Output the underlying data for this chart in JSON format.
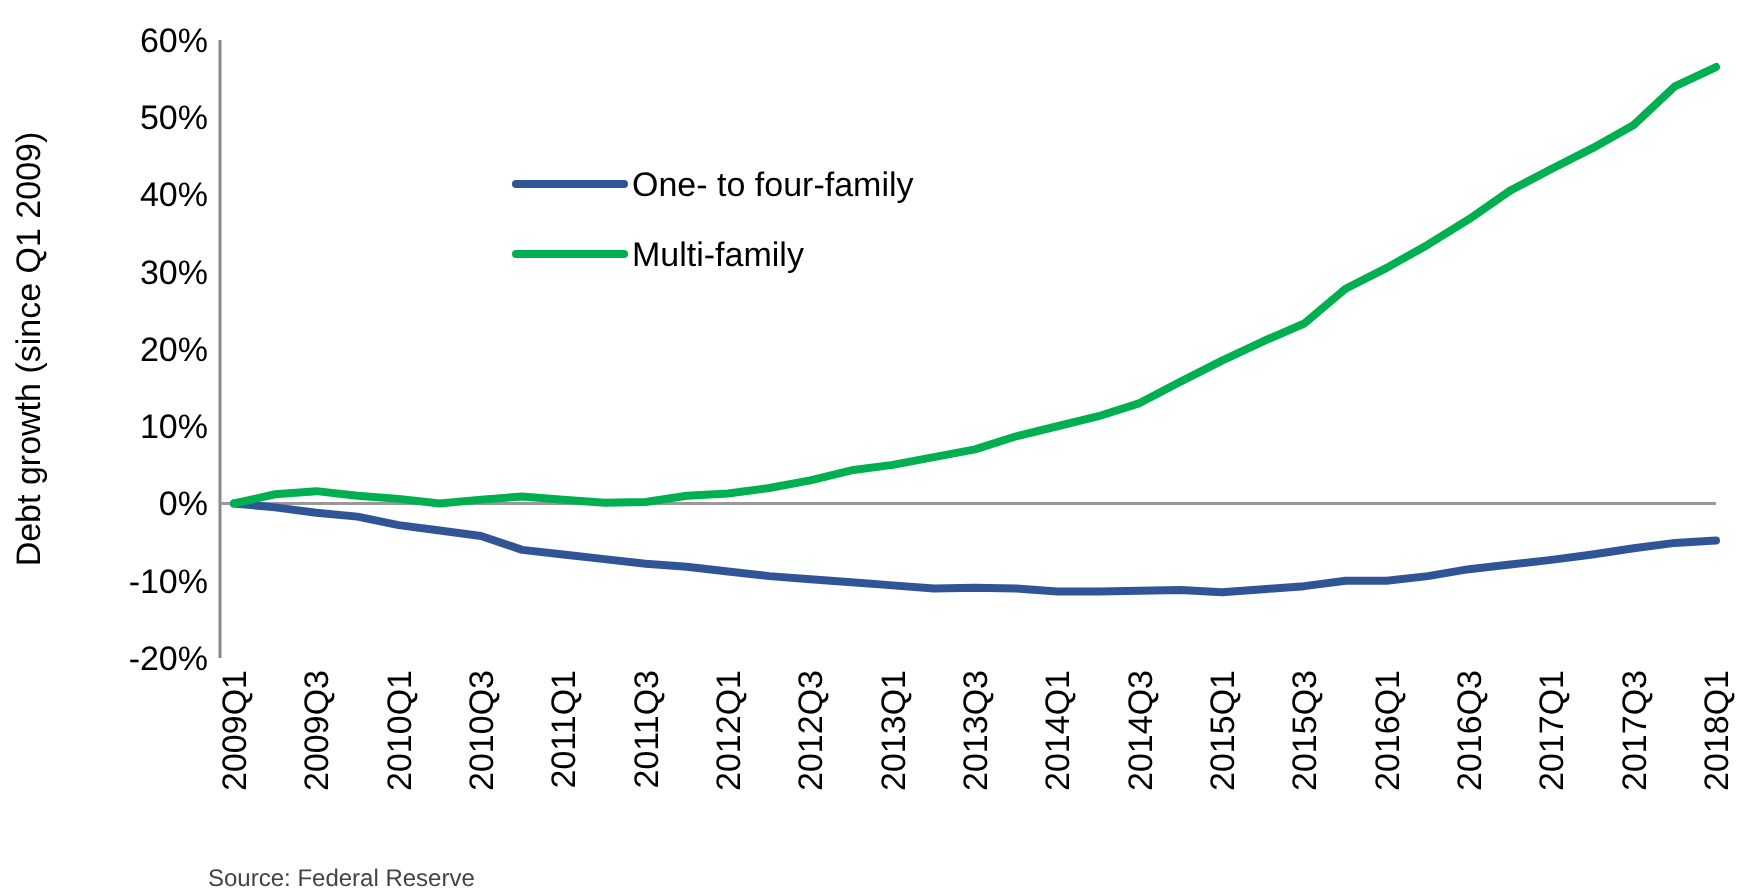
{
  "chart_data": {
    "type": "line",
    "ylabel": "Debt growth (since Q1 2009)",
    "categories": [
      "2009Q1",
      null,
      "2009Q3",
      null,
      "2010Q1",
      null,
      "2010Q3",
      null,
      "2011Q1",
      null,
      "2011Q3",
      null,
      "2012Q1",
      null,
      "2012Q3",
      null,
      "2013Q1",
      null,
      "2013Q3",
      null,
      "2014Q1",
      null,
      "2014Q3",
      null,
      "2015Q1",
      null,
      "2015Q3",
      null,
      "2016Q1",
      null,
      "2016Q3",
      null,
      "2017Q1",
      null,
      "2017Q3",
      null,
      "2018Q1"
    ],
    "series": [
      {
        "name": "One- to four-family",
        "color": "#2f5597",
        "values": [
          0,
          -0.5,
          -1.2,
          -1.7,
          -2.8,
          -3.5,
          -4.2,
          -6.0,
          -6.6,
          -7.2,
          -7.8,
          -8.2,
          -8.8,
          -9.4,
          -9.8,
          -10.2,
          -10.6,
          -11.0,
          -10.9,
          -11.0,
          -11.4,
          -11.4,
          -11.3,
          -11.2,
          -11.5,
          -11.1,
          -10.7,
          -10.0,
          -10.0,
          -9.4,
          -8.5,
          -7.9,
          -7.3,
          -6.6,
          -5.8,
          -5.1,
          -4.8
        ]
      },
      {
        "name": "Multi-family",
        "color": "#00b050",
        "values": [
          0,
          1.2,
          1.6,
          1.0,
          0.6,
          0.0,
          0.5,
          0.9,
          0.5,
          0.1,
          0.2,
          1.0,
          1.3,
          2.0,
          3.0,
          4.3,
          5.0,
          6.0,
          7.0,
          8.7,
          10.0,
          11.3,
          13.0,
          15.8,
          18.5,
          21.0,
          23.3,
          27.8,
          30.5,
          33.5,
          36.8,
          40.5,
          43.3,
          46.0,
          49.0,
          54.0,
          56.5
        ]
      }
    ],
    "ylim": [
      -20,
      60
    ],
    "yticks": [
      {
        "value": -20,
        "label": "-20%"
      },
      {
        "value": -10,
        "label": "-10%"
      },
      {
        "value": 0,
        "label": "0%"
      },
      {
        "value": 10,
        "label": "10%"
      },
      {
        "value": 20,
        "label": "20%"
      },
      {
        "value": 30,
        "label": "30%"
      },
      {
        "value": 40,
        "label": "40%"
      },
      {
        "value": 50,
        "label": "50%"
      },
      {
        "value": 60,
        "label": "60%"
      }
    ],
    "ref_lines": [
      {
        "axis": "y",
        "value": 0,
        "color": "#999999"
      }
    ],
    "legend": "top left",
    "grid": false,
    "marker": "none",
    "line_style": "solid",
    "annotations": [
      "Source: Federal Reserve"
    ]
  }
}
